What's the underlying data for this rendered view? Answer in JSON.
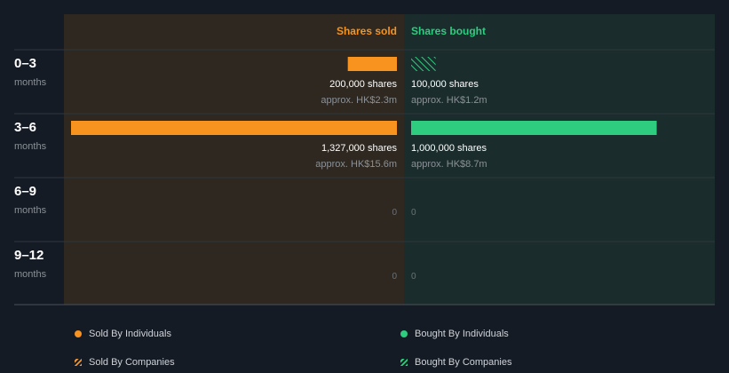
{
  "colors": {
    "background": "#151b24",
    "sold": "#f7931e",
    "bought": "#2ecc7f",
    "sold_panel": "#2e2820",
    "bought_panel": "#1a2d2c",
    "divider": "#2f3740",
    "text_main": "#ffffff",
    "text_muted": "#8b9197"
  },
  "chart_data": {
    "type": "bar",
    "headers": {
      "sold": "Shares sold",
      "bought": "Shares bought"
    },
    "x_max_shares": 1327000,
    "rows": [
      {
        "period": "0–3",
        "unit": "months",
        "sold": {
          "individuals": 200000,
          "companies": 0,
          "label": "200,000 shares",
          "approx": "approx. HK$2.3m"
        },
        "bought": {
          "individuals": 0,
          "companies": 100000,
          "label": "100,000 shares",
          "approx": "approx. HK$1.2m"
        }
      },
      {
        "period": "3–6",
        "unit": "months",
        "sold": {
          "individuals": 1327000,
          "companies": 0,
          "label": "1,327,000 shares",
          "approx": "approx. HK$15.6m"
        },
        "bought": {
          "individuals": 1000000,
          "companies": 0,
          "label": "1,000,000 shares",
          "approx": "approx. HK$8.7m"
        }
      },
      {
        "period": "6–9",
        "unit": "months",
        "sold": {
          "individuals": 0,
          "companies": 0,
          "label": "0",
          "approx": ""
        },
        "bought": {
          "individuals": 0,
          "companies": 0,
          "label": "0",
          "approx": ""
        }
      },
      {
        "period": "9–12",
        "unit": "months",
        "sold": {
          "individuals": 0,
          "companies": 0,
          "label": "0",
          "approx": ""
        },
        "bought": {
          "individuals": 0,
          "companies": 0,
          "label": "0",
          "approx": ""
        }
      }
    ],
    "legend": [
      {
        "key": "sold_individuals",
        "label": "Sold By Individuals",
        "marker": "dot",
        "color": "#f7931e"
      },
      {
        "key": "bought_individuals",
        "label": "Bought By Individuals",
        "marker": "dot",
        "color": "#2ecc7f"
      },
      {
        "key": "sold_companies",
        "label": "Sold By Companies",
        "marker": "hatch",
        "color": "#f7931e"
      },
      {
        "key": "bought_companies",
        "label": "Bought By Companies",
        "marker": "hatch",
        "color": "#2ecc7f"
      }
    ]
  }
}
